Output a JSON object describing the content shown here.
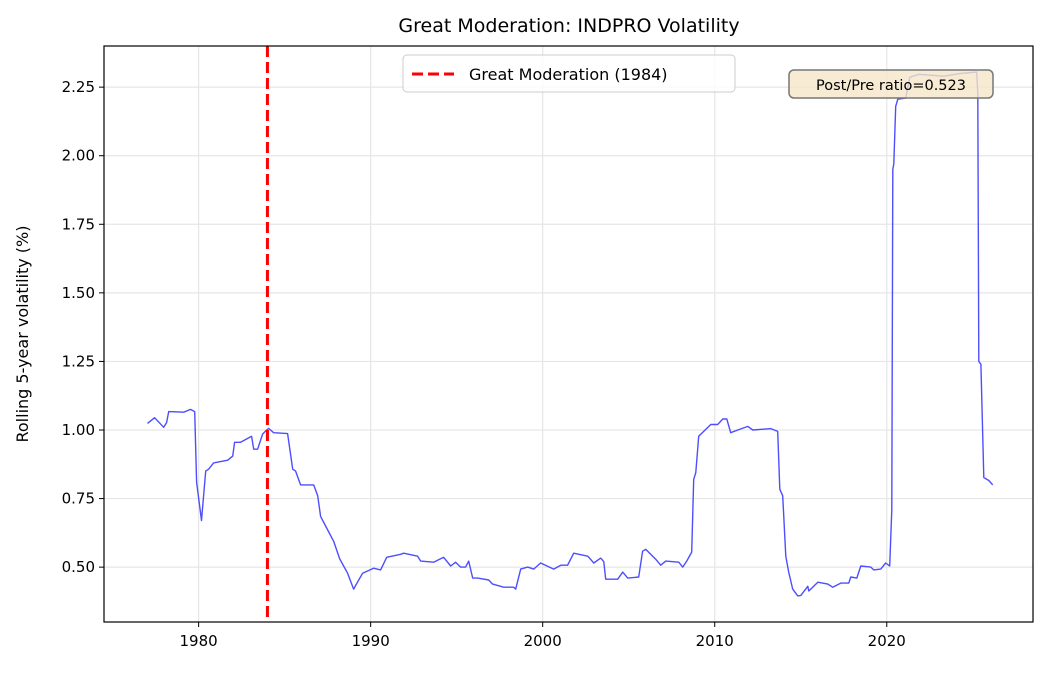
{
  "chart_data": {
    "type": "line",
    "title": "Great Moderation: INDPRO Volatility",
    "xlabel": "",
    "ylabel": "Rolling 5-year volatility (%)",
    "xlim": [
      1974.5,
      2028.5
    ],
    "ylim": [
      0.3,
      2.4
    ],
    "x_ticks": [
      1980,
      1990,
      2000,
      2010,
      2020
    ],
    "x_tick_labels": [
      "1980",
      "1990",
      "2000",
      "2010",
      "2020"
    ],
    "y_ticks": [
      0.5,
      0.75,
      1.0,
      1.25,
      1.5,
      1.75,
      2.0,
      2.25
    ],
    "y_tick_labels": [
      "0.50",
      "0.75",
      "1.00",
      "1.25",
      "1.50",
      "1.75",
      "2.00",
      "2.25"
    ],
    "grid": true,
    "legend_position": "top-center",
    "series": [
      {
        "color": "#4444ff",
        "x": [
          1977.03,
          1977.44,
          1977.97,
          1978.14,
          1978.26,
          1979.13,
          1979.53,
          1979.77,
          1979.88,
          1980.17,
          1980.41,
          1980.58,
          1980.87,
          1981.69,
          1981.98,
          1982.09,
          1982.44,
          1983.08,
          1983.2,
          1983.43,
          1983.72,
          1983.95,
          1984.07,
          1984.36,
          1985.17,
          1985.47,
          1985.64,
          1985.93,
          1986.69,
          1986.92,
          1987.09,
          1987.38,
          1987.85,
          1988.2,
          1988.66,
          1989.01,
          1989.53,
          1990.17,
          1990.58,
          1990.93,
          1991.74,
          1991.92,
          1992.73,
          1992.91,
          1993.66,
          1994.24,
          1994.65,
          1994.94,
          1995.23,
          1995.52,
          1995.7,
          1995.93,
          1996.22,
          1996.86,
          1997.09,
          1997.56,
          1997.73,
          1998.31,
          1998.43,
          1998.72,
          1999.13,
          1999.48,
          1999.88,
          2000.64,
          2001.05,
          2001.45,
          2001.8,
          2002.62,
          2002.97,
          2003.37,
          2003.55,
          2003.66,
          2004.36,
          2004.65,
          2004.94,
          2005.58,
          2005.81,
          2005.99,
          2006.57,
          2006.86,
          2007.15,
          2007.91,
          2008.14,
          2008.37,
          2008.66,
          2008.78,
          2008.9,
          2009.07,
          2009.36,
          2009.77,
          2010.17,
          2010.47,
          2010.7,
          2010.93,
          2011.34,
          2011.92,
          2012.21,
          2013.26,
          2013.66,
          2013.78,
          2013.95,
          2014.13,
          2014.3,
          2014.53,
          2014.83,
          2015.0,
          2015.41,
          2015.47,
          2015.99,
          2016.57,
          2016.86,
          2017.33,
          2017.79,
          2017.91,
          2018.26,
          2018.49,
          2019.07,
          2019.24,
          2019.65,
          2019.94,
          2020.17,
          2020.29,
          2020.35,
          2020.41,
          2020.52,
          2020.64,
          2021.1,
          2021.34,
          2021.86,
          2023.31,
          2024.3,
          2025.23,
          2025.29,
          2025.35,
          2025.47,
          2025.64,
          2025.93,
          2026.16
        ],
        "y": [
          1.024,
          1.045,
          1.01,
          1.027,
          1.067,
          1.065,
          1.075,
          1.067,
          0.81,
          0.67,
          0.85,
          0.857,
          0.88,
          0.89,
          0.905,
          0.955,
          0.955,
          0.977,
          0.93,
          0.93,
          0.985,
          1.0,
          1.006,
          0.99,
          0.987,
          0.857,
          0.85,
          0.8,
          0.8,
          0.76,
          0.685,
          0.65,
          0.594,
          0.53,
          0.478,
          0.42,
          0.478,
          0.496,
          0.49,
          0.536,
          0.547,
          0.551,
          0.54,
          0.522,
          0.518,
          0.536,
          0.504,
          0.518,
          0.5,
          0.5,
          0.522,
          0.46,
          0.46,
          0.453,
          0.438,
          0.43,
          0.427,
          0.427,
          0.42,
          0.493,
          0.5,
          0.493,
          0.515,
          0.493,
          0.507,
          0.507,
          0.551,
          0.54,
          0.515,
          0.533,
          0.52,
          0.456,
          0.456,
          0.482,
          0.46,
          0.464,
          0.558,
          0.565,
          0.529,
          0.507,
          0.522,
          0.518,
          0.5,
          0.522,
          0.555,
          0.82,
          0.845,
          0.977,
          0.995,
          1.02,
          1.02,
          1.04,
          1.04,
          0.99,
          1.0,
          1.013,
          1.0,
          1.005,
          0.995,
          0.784,
          0.76,
          0.54,
          0.482,
          0.42,
          0.395,
          0.397,
          0.43,
          0.413,
          0.445,
          0.438,
          0.427,
          0.442,
          0.442,
          0.464,
          0.46,
          0.504,
          0.5,
          0.49,
          0.493,
          0.515,
          0.504,
          0.71,
          1.95,
          1.97,
          2.18,
          2.206,
          2.21,
          2.286,
          2.297,
          2.29,
          2.3,
          2.305,
          2.228,
          1.25,
          1.24,
          0.827,
          0.816,
          0.8
        ]
      }
    ],
    "vline": {
      "x": 1984,
      "color": "#ff0000",
      "label": "Great Moderation (1984)"
    },
    "annotation": {
      "text": "Post/Pre ratio=0.523",
      "background": "#f5e6c8"
    }
  }
}
